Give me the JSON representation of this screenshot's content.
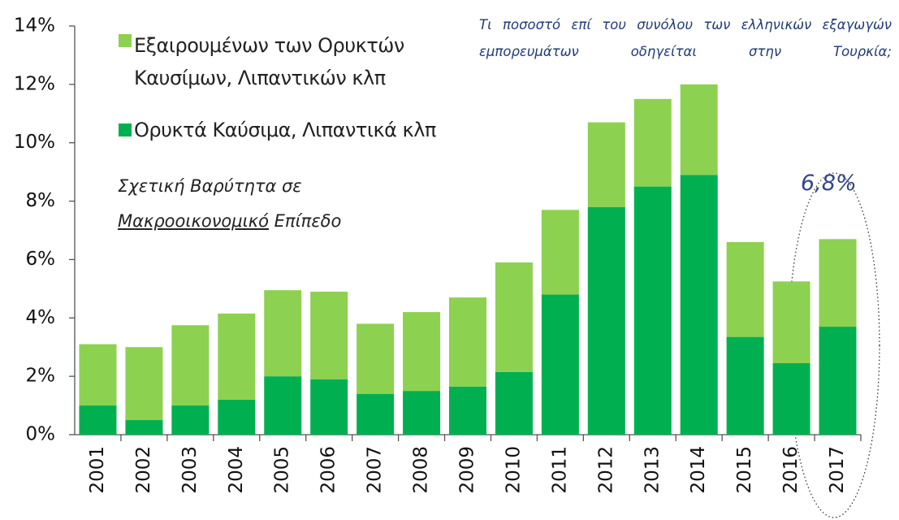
{
  "chart_data": {
    "type": "stacked_bar",
    "title": "Τι ποσοστό επί του συνόλου των ελληνικών εξαγωγών εμπορευμάτων οδηγείται στην Τουρκία;",
    "annotations": [
      "Σχετική Βαρύτητα σε",
      "Μακροοικονομικό",
      "Επίπεδο",
      "6,8%"
    ],
    "categories": [
      "2001",
      "2002",
      "2003",
      "2004",
      "2005",
      "2006",
      "2007",
      "2008",
      "2009",
      "2010",
      "2011",
      "2012",
      "2013",
      "2014",
      "2015",
      "2016",
      "2017"
    ],
    "series": [
      {
        "name": "Εξαιρουμένων των Ορυκτών Καυσίμων, Λιπαντικών κλπ",
        "color": "#8dd150",
        "values": [
          2.1,
          2.5,
          2.75,
          2.95,
          2.95,
          3.0,
          2.4,
          2.7,
          3.05,
          3.75,
          2.9,
          2.9,
          3.0,
          3.1,
          3.25,
          2.8,
          3.0
        ]
      },
      {
        "name": "Ορυκτά Καύσιμα, Λιπαντικά κλπ",
        "color": "#00b050",
        "values": [
          1.0,
          0.5,
          1.0,
          1.2,
          2.0,
          1.9,
          1.4,
          1.5,
          1.65,
          2.15,
          4.8,
          7.8,
          8.5,
          8.9,
          3.35,
          2.45,
          3.7
        ]
      }
    ],
    "ylim": [
      0,
      14
    ],
    "yticks": [
      {
        "value": 0,
        "label": "0%"
      },
      {
        "value": 2,
        "label": "2%"
      },
      {
        "value": 4,
        "label": "4%"
      },
      {
        "value": 6,
        "label": "6%"
      },
      {
        "value": 8,
        "label": "8%"
      },
      {
        "value": 10,
        "label": "10%"
      },
      {
        "value": 12,
        "label": "12%"
      },
      {
        "value": 14,
        "label": "14%"
      }
    ],
    "grid": false
  }
}
